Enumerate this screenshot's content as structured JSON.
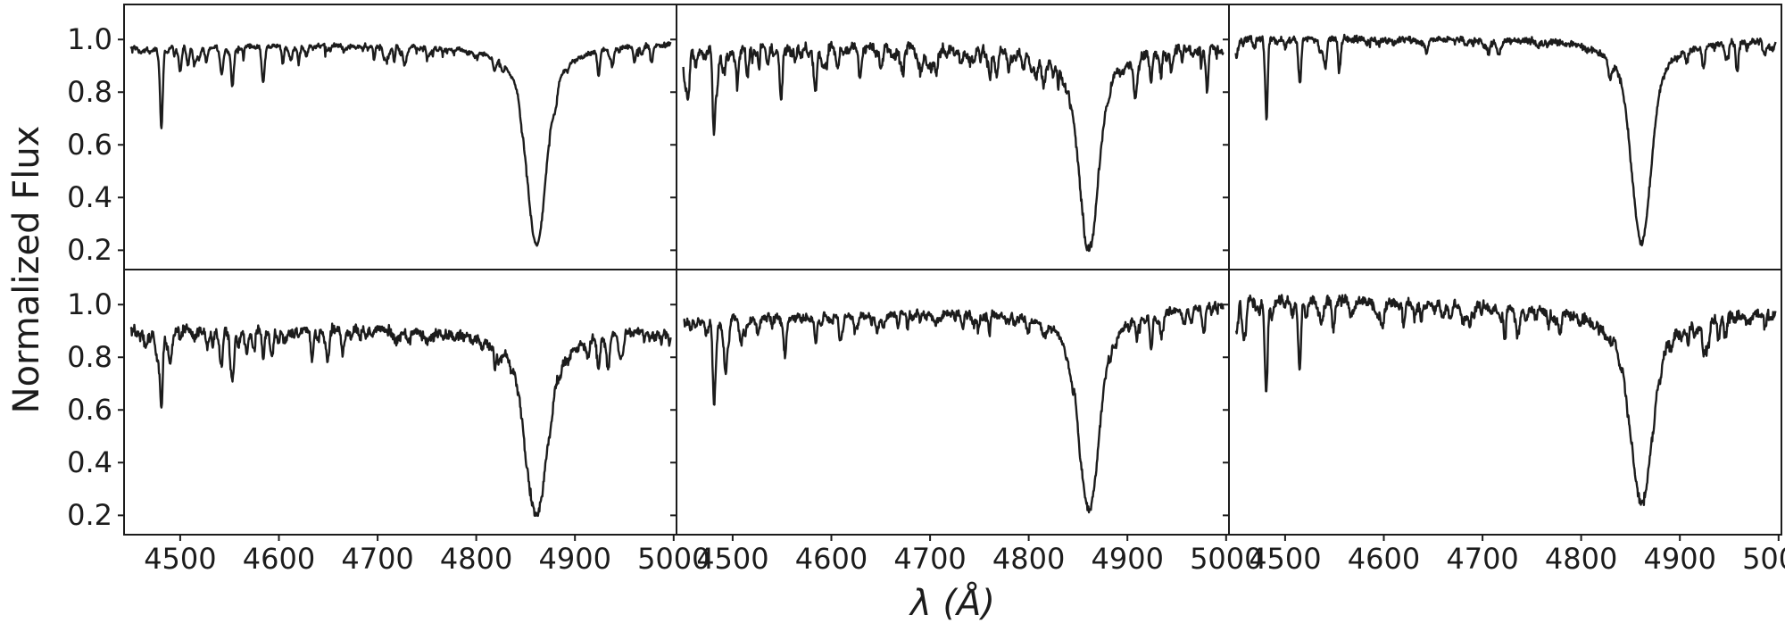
{
  "figure": {
    "ylabel": "Normalized Flux",
    "xlabel": "λ (Å)",
    "line_color": "#1c1c1c",
    "axis_color": "#1c1c1c",
    "background": "#ffffff"
  },
  "chart_data": {
    "type": "line",
    "description": "Grid of six normalized stellar spectra (2 rows x 3 columns) sharing axes. Each panel shows a continuum near flux 1.0 with many narrow metal absorption lines (denser toward shorter wavelengths, with a prominent line near 4481 Å) and one deep, broad Hβ absorption line centered near 4861 Å whose core drops to a flux of about 0.2-0.25.",
    "layout": {
      "rows": 2,
      "cols": 3,
      "shared_x": true,
      "shared_y": true
    },
    "xlabel": "λ (Å)",
    "ylabel": "Normalized Flux",
    "xlim": [
      4444,
      5002
    ],
    "ylim": [
      0.13,
      1.13
    ],
    "xticks": [
      4500,
      4600,
      4700,
      4800,
      4900,
      5000
    ],
    "xtick_labels": [
      "4500",
      "4600",
      "4700",
      "4800",
      "4900",
      "5000"
    ],
    "yticks": [
      0.2,
      0.4,
      0.6,
      0.8,
      1.0
    ],
    "ytick_labels": [
      "0.2",
      "0.4",
      "0.6",
      "0.8",
      "1.0"
    ],
    "x_start": 4450,
    "x_end": 4997,
    "panels": [
      {
        "name": "top-left",
        "row": 0,
        "col": 0,
        "continuum_left": 0.975,
        "continuum_right": 0.99,
        "noise": 0.005,
        "micro_lines": {
          "count": 150,
          "strength": 0.018,
          "seed": 101
        },
        "hbeta": {
          "center": 4861,
          "min_flux": 0.22,
          "core_sigma": 9,
          "wing_gamma": 26
        },
        "strong_lines": [
          {
            "x": 4481,
            "depth": 0.28
          },
          {
            "x": 4508,
            "depth": 0.07
          },
          {
            "x": 4542,
            "depth": 0.1
          },
          {
            "x": 4553,
            "depth": 0.15
          },
          {
            "x": 4584,
            "depth": 0.09
          },
          {
            "x": 4620,
            "depth": 0.06
          },
          {
            "x": 4924,
            "depth": 0.1
          },
          {
            "x": 4938,
            "depth": 0.07
          }
        ]
      },
      {
        "name": "top-middle",
        "row": 0,
        "col": 1,
        "continuum_left": 0.975,
        "continuum_right": 0.985,
        "noise": 0.011,
        "micro_lines": {
          "count": 260,
          "strength": 0.022,
          "seed": 202
        },
        "hbeta": {
          "center": 4861,
          "min_flux": 0.21,
          "core_sigma": 9,
          "wing_gamma": 27
        },
        "strong_lines": [
          {
            "x": 4481,
            "depth": 0.34
          },
          {
            "x": 4515,
            "depth": 0.1
          },
          {
            "x": 4549,
            "depth": 0.2
          },
          {
            "x": 4584,
            "depth": 0.12
          },
          {
            "x": 4630,
            "depth": 0.08
          },
          {
            "x": 4924,
            "depth": 0.12
          },
          {
            "x": 4934,
            "depth": 0.08
          }
        ]
      },
      {
        "name": "top-right",
        "row": 0,
        "col": 2,
        "continuum_left": 1.005,
        "continuum_right": 1.005,
        "noise": 0.007,
        "micro_lines": {
          "count": 90,
          "strength": 0.015,
          "seed": 303
        },
        "hbeta": {
          "center": 4861,
          "min_flux": 0.23,
          "core_sigma": 9,
          "wing_gamma": 25
        },
        "strong_lines": [
          {
            "x": 4481,
            "depth": 0.27
          },
          {
            "x": 4515,
            "depth": 0.16
          },
          {
            "x": 4541,
            "depth": 0.08
          },
          {
            "x": 4555,
            "depth": 0.12
          },
          {
            "x": 4924,
            "depth": 0.09
          },
          {
            "x": 4958,
            "depth": 0.12
          }
        ]
      },
      {
        "name": "bottom-left",
        "row": 1,
        "col": 0,
        "continuum_left": 0.91,
        "continuum_right": 0.92,
        "noise": 0.011,
        "micro_lines": {
          "count": 230,
          "strength": 0.02,
          "seed": 404
        },
        "hbeta": {
          "center": 4861,
          "min_flux": 0.2,
          "core_sigma": 10,
          "wing_gamma": 32
        },
        "strong_lines": [
          {
            "x": 4481,
            "depth": 0.3
          },
          {
            "x": 4542,
            "depth": 0.12
          },
          {
            "x": 4553,
            "depth": 0.14
          },
          {
            "x": 4584,
            "depth": 0.09
          },
          {
            "x": 4650,
            "depth": 0.06
          },
          {
            "x": 4924,
            "depth": 0.12
          },
          {
            "x": 4934,
            "depth": 0.09
          }
        ]
      },
      {
        "name": "bottom-middle",
        "row": 1,
        "col": 1,
        "continuum_left": 0.945,
        "continuum_right": 1.005,
        "noise": 0.009,
        "micro_lines": {
          "count": 180,
          "strength": 0.02,
          "seed": 505
        },
        "hbeta": {
          "center": 4861,
          "min_flux": 0.22,
          "core_sigma": 9,
          "wing_gamma": 28
        },
        "strong_lines": [
          {
            "x": 4481,
            "depth": 0.3
          },
          {
            "x": 4508,
            "depth": 0.08
          },
          {
            "x": 4553,
            "depth": 0.15
          },
          {
            "x": 4584,
            "depth": 0.1
          },
          {
            "x": 4924,
            "depth": 0.1
          },
          {
            "x": 4934,
            "depth": 0.07
          }
        ]
      },
      {
        "name": "bottom-right",
        "row": 1,
        "col": 2,
        "continuum_left": 1.03,
        "continuum_right": 0.975,
        "noise": 0.012,
        "micro_lines": {
          "count": 200,
          "strength": 0.02,
          "seed": 606
        },
        "hbeta": {
          "center": 4861,
          "min_flux": 0.25,
          "core_sigma": 10,
          "wing_gamma": 32
        },
        "strong_lines": [
          {
            "x": 4481,
            "depth": 0.3
          },
          {
            "x": 4515,
            "depth": 0.14
          },
          {
            "x": 4549,
            "depth": 0.1
          },
          {
            "x": 4924,
            "depth": 0.1
          },
          {
            "x": 4946,
            "depth": 0.08
          }
        ]
      }
    ]
  }
}
